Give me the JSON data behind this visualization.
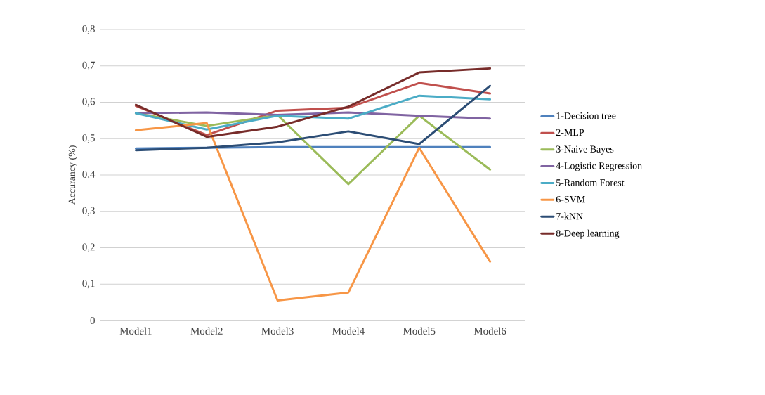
{
  "chart_data": {
    "type": "line",
    "ylabel": "Accurancy (%)",
    "categories": [
      "Model1",
      "Model2",
      "Model3",
      "Model4",
      "Model5",
      "Model6"
    ],
    "ylim": [
      0,
      0.8
    ],
    "yticks": [
      0,
      {
        "value": 0.1,
        "label": "0,1"
      },
      {
        "value": 0.2,
        "label": "0,2"
      },
      {
        "value": 0.3,
        "label": "0,3"
      },
      {
        "value": 0.4,
        "label": "0,4"
      },
      {
        "value": 0.5,
        "label": "0,5"
      },
      {
        "value": 0.6,
        "label": "0,6"
      },
      {
        "value": 0.7,
        "label": "0,7"
      },
      {
        "value": 0.8,
        "label": "0,8"
      }
    ],
    "grid": "y",
    "legend": "right",
    "marker": "none",
    "line_style": "solid",
    "series": [
      {
        "name": "1-Decision tree",
        "color": "#4f81bd",
        "values": [
          0.473,
          0.475,
          0.477,
          0.477,
          0.477,
          0.477
        ]
      },
      {
        "name": "2-MLP",
        "color": "#c0504d",
        "values": [
          0.59,
          0.51,
          0.577,
          0.585,
          0.653,
          0.624
        ]
      },
      {
        "name": "3-Naive Bayes",
        "color": "#9bbb59",
        "values": [
          0.57,
          0.535,
          0.565,
          0.375,
          0.563,
          0.415
        ]
      },
      {
        "name": "4-Logistic Regression",
        "color": "#8064a2",
        "values": [
          0.57,
          0.572,
          0.565,
          0.572,
          0.563,
          0.555
        ]
      },
      {
        "name": "5-Random Forest",
        "color": "#4bacc6",
        "values": [
          0.57,
          0.525,
          0.563,
          0.555,
          0.618,
          0.608
        ]
      },
      {
        "name": "6-SVM",
        "color": "#f79646",
        "values": [
          0.523,
          0.543,
          0.055,
          0.077,
          0.475,
          0.162
        ]
      },
      {
        "name": "7-kNN",
        "color": "#2c4d75",
        "values": [
          0.468,
          0.475,
          0.49,
          0.52,
          0.485,
          0.645
        ]
      },
      {
        "name": "8-Deep learning",
        "color": "#772c2a",
        "values": [
          0.593,
          0.505,
          0.533,
          0.588,
          0.682,
          0.693
        ]
      }
    ]
  }
}
